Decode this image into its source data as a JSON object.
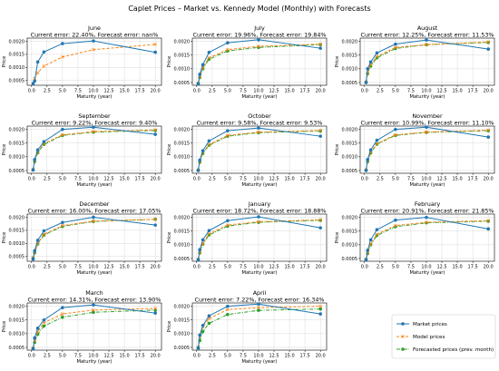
{
  "figure": {
    "title": "Caplet Prices – Market vs. Kennedy Model (Monthly) with Forecasts"
  },
  "legend": {
    "placement": "lower-right",
    "entries": [
      {
        "name": "Market prices",
        "color": "#1f77b4",
        "style": "solid",
        "marker": "circle"
      },
      {
        "name": "Model prices",
        "color": "#ff7f0e",
        "style": "dashed",
        "marker": "x"
      },
      {
        "name": "Forecasted prices (prev. month)",
        "color": "#2ca02c",
        "style": "dashdot",
        "marker": "circle"
      }
    ]
  },
  "chart_data": [
    {
      "type": "line",
      "month": "June",
      "title": "June\nCurrent error: 22.40%, Forecast error: nan%",
      "xlabel": "Maturity (year)",
      "ylabel": "Price",
      "xlim": [
        -0.7,
        21
      ],
      "ylim": [
        0.00032,
        0.00212
      ],
      "xticks": [
        0.0,
        2.5,
        5.0,
        7.5,
        10.0,
        12.5,
        15.0,
        17.5,
        20.0
      ],
      "yticks": [
        0.0005,
        0.001,
        0.0015,
        0.002
      ],
      "x": [
        0.25,
        0.5,
        1,
        2,
        5,
        10,
        20
      ],
      "series": [
        {
          "name": "Market prices",
          "values": [
            0.00038,
            0.00048,
            0.00121,
            0.00159,
            0.00191,
            0.00201,
            0.00158
          ]
        },
        {
          "name": "Model prices",
          "values": [
            0.0004,
            0.00058,
            0.0008,
            0.00105,
            0.0014,
            0.00168,
            0.00188
          ]
        }
      ]
    },
    {
      "type": "line",
      "month": "July",
      "title": "July\nCurrent error: 19.96%, Forecast error: 19.84%",
      "xlabel": "Maturity (year)",
      "ylabel": "Price",
      "xlim": [
        -0.7,
        21
      ],
      "ylim": [
        0.0004,
        0.00212
      ],
      "xticks": [
        0.0,
        2.5,
        5.0,
        7.5,
        10.0,
        12.5,
        15.0,
        17.5,
        20.0
      ],
      "yticks": [
        0.0005,
        0.001,
        0.0015,
        0.002
      ],
      "x": [
        0.25,
        0.5,
        1,
        2,
        5,
        10,
        20
      ],
      "series": [
        {
          "name": "Market prices",
          "values": [
            0.00045,
            0.0008,
            0.00115,
            0.0016,
            0.00195,
            0.00206,
            0.00175
          ]
        },
        {
          "name": "Model prices",
          "values": [
            0.00048,
            0.0007,
            0.00105,
            0.0014,
            0.0017,
            0.00182,
            0.0019
          ]
        },
        {
          "name": "Forecasted prices (prev. month)",
          "values": [
            0.00046,
            0.00068,
            0.001,
            0.00135,
            0.00165,
            0.00178,
            0.00188
          ]
        }
      ]
    },
    {
      "type": "line",
      "month": "August",
      "title": "August\nCurrent error: 12.25%, Forecast error: 11.53%",
      "xlabel": "Maturity (year)",
      "ylabel": "Price",
      "xlim": [
        -0.7,
        21
      ],
      "ylim": [
        0.0004,
        0.00212
      ],
      "xticks": [
        0.0,
        2.5,
        5.0,
        7.5,
        10.0,
        12.5,
        15.0,
        17.5,
        20.0
      ],
      "yticks": [
        0.0005,
        0.001,
        0.0015,
        0.002
      ],
      "x": [
        0.25,
        0.5,
        1,
        2,
        5,
        10,
        20
      ],
      "series": [
        {
          "name": "Market prices",
          "values": [
            0.0005,
            0.001,
            0.00125,
            0.00158,
            0.0019,
            0.00205,
            0.00172
          ]
        },
        {
          "name": "Model prices",
          "values": [
            0.00052,
            0.00085,
            0.00115,
            0.00145,
            0.00178,
            0.00188,
            0.00198
          ]
        },
        {
          "name": "Forecasted prices (prev. month)",
          "values": [
            0.0005,
            0.00082,
            0.0011,
            0.0014,
            0.00174,
            0.00188,
            0.00196
          ]
        }
      ]
    },
    {
      "type": "line",
      "month": "September",
      "title": "September\nCurrent error: 9.22%, Forecast error: 9.40%",
      "xlabel": "Maturity (year)",
      "ylabel": "Price",
      "xlim": [
        -0.7,
        21
      ],
      "ylim": [
        0.0004,
        0.00212
      ],
      "xticks": [
        0.0,
        2.5,
        5.0,
        7.5,
        10.0,
        12.5,
        15.0,
        17.5,
        20.0
      ],
      "yticks": [
        0.0005,
        0.001,
        0.0015,
        0.002
      ],
      "x": [
        0.25,
        0.5,
        1,
        2,
        5,
        10,
        20
      ],
      "series": [
        {
          "name": "Market prices",
          "values": [
            0.00052,
            0.0009,
            0.00125,
            0.00155,
            0.002,
            0.00208,
            0.00182
          ]
        },
        {
          "name": "Model prices",
          "values": [
            0.00054,
            0.00085,
            0.00118,
            0.00148,
            0.0018,
            0.00192,
            0.00198
          ]
        },
        {
          "name": "Forecasted prices (prev. month)",
          "values": [
            0.00052,
            0.00082,
            0.00115,
            0.00145,
            0.00178,
            0.0019,
            0.00196
          ]
        }
      ]
    },
    {
      "type": "line",
      "month": "October",
      "title": "October\nCurrent error: 9.58%, Forecast error: 9.53%",
      "xlabel": "Maturity (year)",
      "ylabel": "Price",
      "xlim": [
        -0.7,
        21
      ],
      "ylim": [
        0.0004,
        0.00212
      ],
      "xticks": [
        0.0,
        2.5,
        5.0,
        7.5,
        10.0,
        12.5,
        15.0,
        17.5,
        20.0
      ],
      "yticks": [
        0.0005,
        0.001,
        0.0015,
        0.002
      ],
      "x": [
        0.25,
        0.5,
        1,
        2,
        5,
        10,
        20
      ],
      "series": [
        {
          "name": "Market prices",
          "values": [
            0.0005,
            0.00088,
            0.00122,
            0.00158,
            0.00195,
            0.00205,
            0.00175
          ]
        },
        {
          "name": "Model prices",
          "values": [
            0.00052,
            0.00082,
            0.00115,
            0.00145,
            0.00178,
            0.0019,
            0.00196
          ]
        },
        {
          "name": "Forecasted prices (prev. month)",
          "values": [
            0.00051,
            0.0008,
            0.00112,
            0.00142,
            0.00175,
            0.00188,
            0.00194
          ]
        }
      ]
    },
    {
      "type": "line",
      "month": "November",
      "title": "November\nCurrent error: 10.99%, Forecast error: 11.10%",
      "xlabel": "Maturity (year)",
      "ylabel": "Price",
      "xlim": [
        -0.7,
        21
      ],
      "ylim": [
        0.0004,
        0.00212
      ],
      "xticks": [
        0.0,
        2.5,
        5.0,
        7.5,
        10.0,
        12.5,
        15.0,
        17.5,
        20.0
      ],
      "yticks": [
        0.0005,
        0.001,
        0.0015,
        0.002
      ],
      "x": [
        0.25,
        0.5,
        1,
        2,
        5,
        10,
        20
      ],
      "series": [
        {
          "name": "Market prices",
          "values": [
            0.0005,
            0.0009,
            0.00125,
            0.0016,
            0.002,
            0.00208,
            0.00172
          ]
        },
        {
          "name": "Model prices",
          "values": [
            0.00052,
            0.00084,
            0.00116,
            0.00148,
            0.0018,
            0.0019,
            0.00197
          ]
        },
        {
          "name": "Forecasted prices (prev. month)",
          "values": [
            0.00051,
            0.00082,
            0.00114,
            0.00146,
            0.00178,
            0.00189,
            0.00195
          ]
        }
      ]
    },
    {
      "type": "line",
      "month": "December",
      "title": "December\nCurrent error: 16.00%, Forecast error: 17.05%",
      "xlabel": "Maturity (year)",
      "ylabel": "Price",
      "xlim": [
        -0.7,
        21
      ],
      "ylim": [
        0.00032,
        0.00212
      ],
      "xticks": [
        0.0,
        2.5,
        5.0,
        7.5,
        10.0,
        12.5,
        15.0,
        17.5,
        20.0
      ],
      "yticks": [
        0.0005,
        0.001,
        0.0015,
        0.002
      ],
      "x": [
        0.25,
        0.5,
        1,
        2,
        5,
        10,
        20
      ],
      "series": [
        {
          "name": "Market prices",
          "values": [
            0.0004,
            0.00072,
            0.00112,
            0.00148,
            0.0018,
            0.002,
            0.0017
          ]
        },
        {
          "name": "Model prices",
          "values": [
            0.00045,
            0.00065,
            0.001,
            0.00135,
            0.00168,
            0.00185,
            0.00192
          ]
        },
        {
          "name": "Forecasted prices (prev. month)",
          "values": [
            0.00044,
            0.00064,
            0.00098,
            0.00132,
            0.00165,
            0.00184,
            0.00192
          ]
        }
      ]
    },
    {
      "type": "line",
      "month": "January",
      "title": "January\nCurrent error: 18.72%, Forecast error: 18.88%",
      "xlabel": "Maturity (year)",
      "ylabel": "Price",
      "xlim": [
        -0.7,
        21
      ],
      "ylim": [
        0.0004,
        0.00212
      ],
      "xticks": [
        0.0,
        2.5,
        5.0,
        7.5,
        10.0,
        12.5,
        15.0,
        17.5,
        20.0
      ],
      "yticks": [
        0.0005,
        0.001,
        0.0015,
        0.002
      ],
      "x": [
        0.25,
        0.5,
        1,
        2,
        5,
        10,
        20
      ],
      "series": [
        {
          "name": "Market prices",
          "values": [
            0.00045,
            0.00082,
            0.00118,
            0.00152,
            0.00188,
            0.00202,
            0.00162
          ]
        },
        {
          "name": "Model prices",
          "values": [
            0.00047,
            0.00072,
            0.00105,
            0.0014,
            0.00172,
            0.00184,
            0.00191
          ]
        },
        {
          "name": "Forecasted prices (prev. month)",
          "values": [
            0.00046,
            0.0007,
            0.00102,
            0.00136,
            0.00168,
            0.00182,
            0.00189
          ]
        }
      ]
    },
    {
      "type": "line",
      "month": "February",
      "title": "February\nCurrent error: 20.91%, Forecast error: 21.85%",
      "xlabel": "Maturity (year)",
      "ylabel": "Price",
      "xlim": [
        -0.7,
        21
      ],
      "ylim": [
        0.0004,
        0.00212
      ],
      "xticks": [
        0.0,
        2.5,
        5.0,
        7.5,
        10.0,
        12.5,
        15.0,
        17.5,
        20.0
      ],
      "yticks": [
        0.0005,
        0.001,
        0.0015,
        0.002
      ],
      "x": [
        0.25,
        0.5,
        1,
        2,
        5,
        10,
        20
      ],
      "series": [
        {
          "name": "Market prices",
          "values": [
            0.00045,
            0.0008,
            0.00118,
            0.00155,
            0.0019,
            0.002,
            0.00158
          ]
        },
        {
          "name": "Model prices",
          "values": [
            0.00047,
            0.0007,
            0.00104,
            0.00138,
            0.0017,
            0.00182,
            0.00188
          ]
        },
        {
          "name": "Forecasted prices (prev. month)",
          "values": [
            0.00046,
            0.00068,
            0.001,
            0.00134,
            0.00166,
            0.0018,
            0.00186
          ]
        }
      ]
    },
    {
      "type": "line",
      "month": "March",
      "title": "March\nCurrent error: 14.31%, Forecast error: 13.90%",
      "xlabel": "Maturity (year)",
      "ylabel": "Price",
      "xlim": [
        -0.7,
        21
      ],
      "ylim": [
        0.0004,
        0.00212
      ],
      "xticks": [
        0.0,
        2.5,
        5.0,
        7.5,
        10.0,
        12.5,
        15.0,
        17.5,
        20.0
      ],
      "yticks": [
        0.0005,
        0.001,
        0.0015,
        0.002
      ],
      "x": [
        0.25,
        0.5,
        1,
        2,
        5,
        10,
        20
      ],
      "series": [
        {
          "name": "Market prices",
          "values": [
            0.00045,
            0.00085,
            0.0012,
            0.0015,
            0.00195,
            0.00205,
            0.00175
          ]
        },
        {
          "name": "Model prices",
          "values": [
            0.00048,
            0.00075,
            0.00108,
            0.0014,
            0.00172,
            0.00186,
            0.00192
          ]
        },
        {
          "name": "Forecasted prices (prev. month)",
          "values": [
            0.00046,
            0.00068,
            0.00098,
            0.00128,
            0.0016,
            0.00178,
            0.00186
          ]
        }
      ]
    },
    {
      "type": "line",
      "month": "April",
      "title": "April\nCurrent error: 7.22%, Forecast error: 16.34%",
      "xlabel": "Maturity (year)",
      "ylabel": "Price",
      "xlim": [
        -0.7,
        21
      ],
      "ylim": [
        0.0004,
        0.00212
      ],
      "xticks": [
        0.0,
        2.5,
        5.0,
        7.5,
        10.0,
        12.5,
        15.0,
        17.5,
        20.0
      ],
      "yticks": [
        0.0005,
        0.001,
        0.0015,
        0.002
      ],
      "x": [
        0.25,
        0.5,
        1,
        2,
        5,
        10,
        20
      ],
      "series": [
        {
          "name": "Market prices",
          "values": [
            0.00048,
            0.00095,
            0.0013,
            0.00165,
            0.002,
            0.00208,
            0.00172
          ]
        },
        {
          "name": "Model prices",
          "values": [
            0.0005,
            0.0009,
            0.00125,
            0.00155,
            0.00188,
            0.00195,
            0.002
          ]
        },
        {
          "name": "Forecasted prices (prev. month)",
          "values": [
            0.00046,
            0.00075,
            0.00108,
            0.00138,
            0.0017,
            0.00185,
            0.0019
          ]
        }
      ]
    }
  ]
}
